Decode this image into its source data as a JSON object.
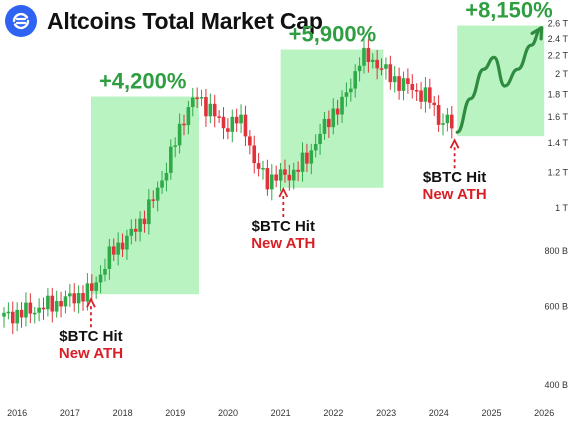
{
  "header": {
    "title": "Altcoins Total Market Cap",
    "logo_icon": "exchange-logo-icon"
  },
  "colors": {
    "up": "#2eaa48",
    "down": "#e0323a",
    "highlight": "#b5f2bf",
    "gain_text": "#2f9e41",
    "annotation_red": "#d91f26",
    "projection": "#2e8b3f"
  },
  "chart_data": {
    "type": "candlestick",
    "title": "Altcoins Total Market Cap",
    "xlabel": "",
    "ylabel": "",
    "y_scale": "log",
    "ylim": [
      380,
      2700
    ],
    "x_ticks": [
      "2016",
      "2017",
      "2018",
      "2019",
      "2020",
      "2021",
      "2022",
      "2023",
      "2024",
      "2025",
      "2026"
    ],
    "y_ticks": [
      {
        "value": 400,
        "label": "400 B"
      },
      {
        "value": 600,
        "label": "600 B"
      },
      {
        "value": 800,
        "label": "800 B"
      },
      {
        "value": 1000,
        "label": "1 T"
      },
      {
        "value": 1200,
        "label": "1.2 T"
      },
      {
        "value": 1400,
        "label": "1.4 T"
      },
      {
        "value": 1600,
        "label": "1.6 T"
      },
      {
        "value": 1800,
        "label": "1.8 T"
      },
      {
        "value": 2000,
        "label": "2 T"
      },
      {
        "value": 2200,
        "label": "2.2 T"
      },
      {
        "value": 2400,
        "label": "2.4 T"
      },
      {
        "value": 2600,
        "label": "2.6 T"
      }
    ],
    "price_path": [
      [
        2015.75,
        570
      ],
      [
        2016.3,
        590
      ],
      [
        2016.9,
        620
      ],
      [
        2017.4,
        650
      ],
      [
        2017.8,
        800
      ],
      [
        2018.2,
        880
      ],
      [
        2018.6,
        1050
      ],
      [
        2018.9,
        1300
      ],
      [
        2019.2,
        1650
      ],
      [
        2019.4,
        1780
      ],
      [
        2019.7,
        1650
      ],
      [
        2019.9,
        1520
      ],
      [
        2020.2,
        1580
      ],
      [
        2020.35,
        1500
      ],
      [
        2020.5,
        1250
      ],
      [
        2020.75,
        1160
      ],
      [
        2021.0,
        1180
      ],
      [
        2021.25,
        1200
      ],
      [
        2021.5,
        1300
      ],
      [
        2021.8,
        1500
      ],
      [
        2022.0,
        1650
      ],
      [
        2022.15,
        1700
      ],
      [
        2022.35,
        1920
      ],
      [
        2022.5,
        2160
      ],
      [
        2022.65,
        2180
      ],
      [
        2022.85,
        2100
      ],
      [
        2023.1,
        1960
      ],
      [
        2023.4,
        1880
      ],
      [
        2023.7,
        1800
      ],
      [
        2023.85,
        1740
      ],
      [
        2024.0,
        1580
      ],
      [
        2024.2,
        1560
      ],
      [
        2024.3,
        1500
      ]
    ],
    "highlight_zones": [
      {
        "x0": 2017.4,
        "x1": 2019.45,
        "y0": 640,
        "y1": 1780,
        "gain_label": "+4,200%"
      },
      {
        "x0": 2021.0,
        "x1": 2022.95,
        "y0": 1110,
        "y1": 2270,
        "gain_label": "+5,900%"
      },
      {
        "x0": 2024.35,
        "x1": 2026.0,
        "y0": 1450,
        "y1": 2570,
        "gain_label": "+8,150%"
      }
    ],
    "annotations": [
      {
        "x": 2017.4,
        "y_from": 650,
        "line1": "$BTC Hit",
        "line2": "New ATH"
      },
      {
        "x": 2021.05,
        "y_from": 1150,
        "line1": "$BTC Hit",
        "line2": "New ATH"
      },
      {
        "x": 2024.3,
        "y_from": 1480,
        "line1": "$BTC Hit",
        "line2": "New ATH"
      }
    ],
    "projection_path": [
      [
        2024.35,
        1480
      ],
      [
        2024.6,
        1760
      ],
      [
        2024.85,
        2050
      ],
      [
        2025.05,
        2180
      ],
      [
        2025.25,
        1880
      ],
      [
        2025.5,
        2050
      ],
      [
        2025.75,
        2320
      ],
      [
        2025.95,
        2540
      ]
    ],
    "legend": "none",
    "grid": false
  }
}
